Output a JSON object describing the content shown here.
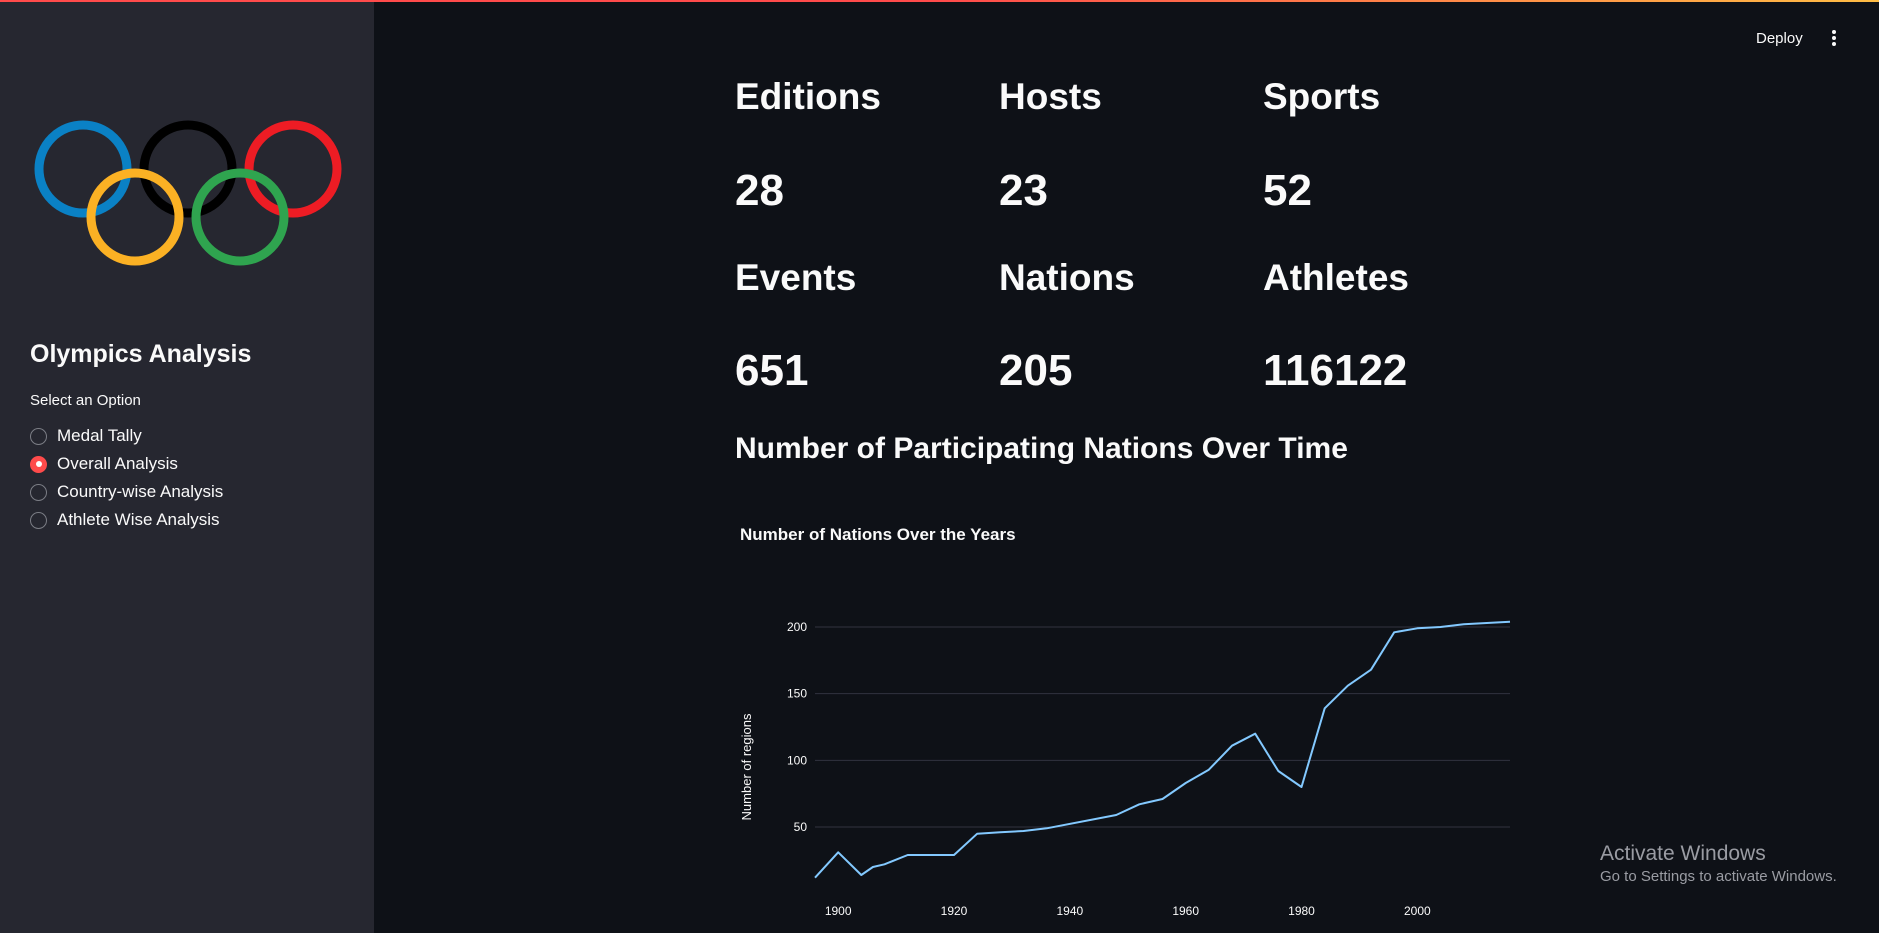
{
  "sidebar": {
    "logo_name": "olympic-rings-logo",
    "ring_colors": [
      "#0a81c5",
      "#000000",
      "#ed1c24",
      "#fbb124",
      "#2fa44f"
    ],
    "title": "Olympics Analysis",
    "radio_label": "Select an Option",
    "options": [
      {
        "label": "Medal Tally",
        "selected": false
      },
      {
        "label": "Overall Analysis",
        "selected": true
      },
      {
        "label": "Country-wise Analysis",
        "selected": false
      },
      {
        "label": "Athlete Wise Analysis",
        "selected": false
      }
    ]
  },
  "header": {
    "deploy_label": "Deploy",
    "menu_icon": "kebab-menu-icon"
  },
  "metrics": [
    {
      "label": "Editions",
      "value": "28"
    },
    {
      "label": "Hosts",
      "value": "23"
    },
    {
      "label": "Sports",
      "value": "52"
    },
    {
      "label": "Events",
      "value": "651"
    },
    {
      "label": "Nations",
      "value": "205"
    },
    {
      "label": "Athletes",
      "value": "116122"
    }
  ],
  "section": {
    "heading": "Number of Participating Nations Over Time"
  },
  "chart_data": {
    "type": "line",
    "title": "Number of Nations Over the Years",
    "xlabel": "",
    "ylabel": "Number of regions",
    "x_ticks": [
      1900,
      1920,
      1940,
      1960,
      1980,
      2000
    ],
    "y_ticks": [
      50,
      100,
      150,
      200
    ],
    "xlim": [
      1896,
      2016
    ],
    "ylim": [
      5,
      215
    ],
    "grid": true,
    "line_color": "#83c9ff",
    "x": [
      1896,
      1900,
      1904,
      1906,
      1908,
      1912,
      1920,
      1924,
      1928,
      1932,
      1936,
      1948,
      1952,
      1956,
      1960,
      1964,
      1968,
      1972,
      1976,
      1980,
      1984,
      1988,
      1992,
      1996,
      2000,
      2004,
      2008,
      2012,
      2016
    ],
    "y": [
      12,
      31,
      14,
      20,
      22,
      29,
      29,
      45,
      46,
      47,
      49,
      59,
      67,
      71,
      83,
      93,
      111,
      120,
      92,
      80,
      139,
      156,
      168,
      196,
      199,
      200,
      202,
      203,
      204
    ]
  },
  "watermark": {
    "title": "Activate Windows",
    "subtitle": "Go to Settings to activate Windows."
  }
}
